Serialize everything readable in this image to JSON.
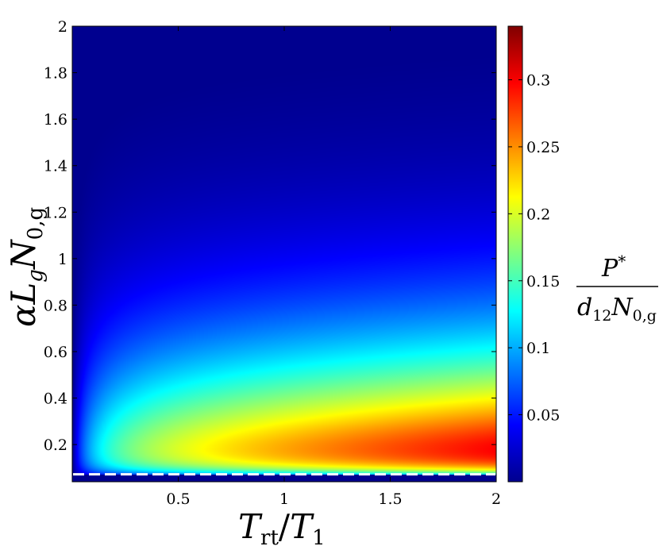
{
  "chart_data": {
    "type": "heatmap",
    "title": "",
    "xlabel": "T_rt/T_1",
    "ylabel": "αL_gN_0,g",
    "colorbar_label": "P*/(d_12 N_0,g)",
    "x_range": [
      0,
      2
    ],
    "y_range": [
      0.04,
      2
    ],
    "color_range": [
      0,
      0.34
    ],
    "colormap": "jet",
    "x_ticks": [
      0.5,
      1,
      1.5,
      2
    ],
    "x_tick_labels": [
      "0.5",
      "1",
      "1.5",
      "2"
    ],
    "y_ticks": [
      0.2,
      0.4,
      0.6,
      0.8,
      1,
      1.2,
      1.4,
      1.6,
      1.8,
      2
    ],
    "y_tick_labels": [
      "0.2",
      "0.4",
      "0.6",
      "0.8",
      "1",
      "1.2",
      "1.4",
      "1.6",
      "1.8",
      "2"
    ],
    "colorbar_ticks": [
      0.05,
      0.1,
      0.15,
      0.2,
      0.25,
      0.3
    ],
    "colorbar_tick_labels": [
      "0.05",
      "0.1",
      "0.15",
      "0.2",
      "0.25",
      "0.3"
    ],
    "threshold_line": {
      "y": 0.072,
      "style": "dashed",
      "color": "#ffffff"
    },
    "grid": false,
    "legend": "none",
    "notes_visible": {
      "peak_region": "x≈1.7–2, y≈0.1, value≈0.34",
      "below_threshold": "value≈0"
    }
  },
  "text": {
    "xlabel_T": "T",
    "xlabel_rt": "rt",
    "xlabel_slash": "/",
    "xlabel_T2": "T",
    "xlabel_1": "1",
    "ylabel_alpha": "α",
    "ylabel_L": "L",
    "ylabel_g": "g",
    "ylabel_N": "N",
    "ylabel_0g": "0,g",
    "cb_num_P": "P",
    "cb_num_star": "*",
    "cb_den_d": "d",
    "cb_den_12": "12",
    "cb_den_N": "N",
    "cb_den_0g": "0,g"
  },
  "colors": {
    "axis": "#000000",
    "background": "#ffffff",
    "threshold": "#ffffff"
  }
}
